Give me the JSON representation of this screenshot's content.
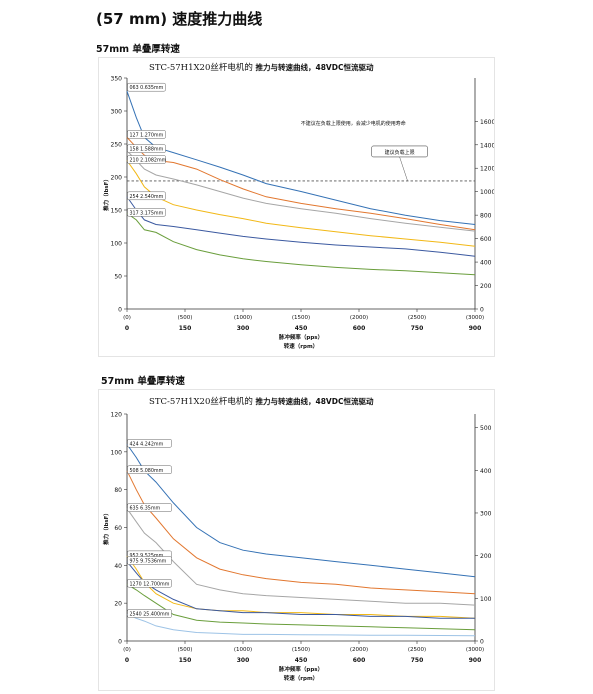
{
  "page": {
    "title": "(57 mm) 速度推力曲线",
    "section1_title": "57mm 单叠厚转速",
    "section2_title": "57mm 单叠厚转速"
  },
  "chart_data": [
    {
      "type": "line",
      "title_prefix": "STC-57H1X20丝杆电机的",
      "title_suffix": "推力与转速曲线，48VDC恒流驱动",
      "ylabel": "推力（lbsF）",
      "ylabel_right": "推力（N）",
      "xlabel": "脉冲频率（pps）",
      "xlabel2": "转速（rpm）",
      "yticks": [
        "0",
        "50",
        "100",
        "150",
        "200",
        "250",
        "300",
        "350"
      ],
      "ylim": [
        0,
        350
      ],
      "yticks_right": [
        "0",
        "200",
        "400",
        "600",
        "800",
        "1000",
        "1200",
        "1400",
        "1600"
      ],
      "x_pps_ticks": [
        "(0)",
        "(500)",
        "(1000)",
        "(1500)",
        "(2000)",
        "(2500)",
        "(3000)"
      ],
      "x_rpm_ticks": [
        "0",
        "150",
        "300",
        "450",
        "600",
        "750",
        "900"
      ],
      "xlim": [
        0,
        3000
      ],
      "note": "不建议在负载上限使用，会减少电机的使用寿命",
      "limit_label": "建议负载上限",
      "limit_value": 194,
      "series": [
        {
          "name": "063 0.635mm",
          "color": "#3572b5",
          "x": [
            0,
            80,
            150,
            250,
            400,
            600,
            800,
            1000,
            1200,
            1500,
            1800,
            2100,
            2400,
            2700,
            3000
          ],
          "y": [
            330,
            290,
            260,
            245,
            237,
            226,
            215,
            203,
            190,
            178,
            165,
            152,
            142,
            134,
            128
          ]
        },
        {
          "name": "127 1.270mm",
          "color": "#e2772f",
          "x": [
            0,
            80,
            150,
            250,
            400,
            600,
            800,
            1000,
            1200,
            1500,
            1800,
            2100,
            2400,
            2700,
            3000
          ],
          "y": [
            260,
            245,
            233,
            225,
            222,
            212,
            196,
            182,
            170,
            160,
            152,
            145,
            137,
            128,
            120
          ]
        },
        {
          "name": "158 1.588mm",
          "color": "#a6a6a6",
          "x": [
            0,
            80,
            150,
            250,
            400,
            600,
            800,
            1000,
            1200,
            1500,
            1800,
            2100,
            2400,
            2700,
            3000
          ],
          "y": [
            240,
            225,
            212,
            203,
            197,
            188,
            178,
            168,
            160,
            152,
            145,
            137,
            130,
            124,
            118
          ]
        },
        {
          "name": "210 2.1082mm",
          "color": "#f2b816",
          "x": [
            0,
            80,
            150,
            250,
            400,
            600,
            800,
            1000,
            1200,
            1500,
            1800,
            2100,
            2400,
            2700,
            3000
          ],
          "y": [
            225,
            205,
            185,
            170,
            158,
            150,
            143,
            137,
            130,
            123,
            117,
            111,
            106,
            101,
            95
          ]
        },
        {
          "name": "254 2.540mm",
          "color": "#3b59a0",
          "x": [
            0,
            80,
            150,
            250,
            400,
            600,
            800,
            1000,
            1200,
            1500,
            1800,
            2100,
            2400,
            2700,
            3000
          ],
          "y": [
            170,
            150,
            135,
            128,
            125,
            120,
            115,
            110,
            106,
            101,
            97,
            94,
            91,
            86,
            80
          ]
        },
        {
          "name": "317 3.175mm",
          "color": "#6a9e3c",
          "x": [
            0,
            80,
            150,
            250,
            400,
            600,
            800,
            1000,
            1200,
            1500,
            1800,
            2100,
            2400,
            2700,
            3000
          ],
          "y": [
            145,
            135,
            120,
            116,
            102,
            90,
            82,
            76,
            72,
            67,
            63,
            60,
            58,
            55,
            52
          ]
        }
      ],
      "grid": false,
      "legend": "callout labels at curve starts"
    },
    {
      "type": "line",
      "title_prefix": "STC-57H1X20丝杆电机的",
      "title_suffix": "推力与转速曲线，48VDC恒流驱动",
      "ylabel": "推力（lbsF）",
      "ylabel_right": "推力（N）",
      "xlabel": "脉冲频率（pps）",
      "xlabel2": "转速（rpm）",
      "yticks": [
        "0",
        "20",
        "40",
        "60",
        "80",
        "100",
        "120"
      ],
      "ylim": [
        0,
        120
      ],
      "yticks_right": [
        "0",
        "100",
        "200",
        "300",
        "400",
        "500"
      ],
      "x_pps_ticks": [
        "(0)",
        "(500)",
        "(1000)",
        "(1500)",
        "(2000)",
        "(2500)",
        "(3000)"
      ],
      "x_rpm_ticks": [
        "0",
        "150",
        "300",
        "450",
        "600",
        "750",
        "900"
      ],
      "xlim": [
        0,
        3000
      ],
      "series": [
        {
          "name": "424 4.242mm",
          "color": "#3572b5",
          "x": [
            0,
            80,
            150,
            250,
            400,
            600,
            800,
            1000,
            1200,
            1500,
            1800,
            2100,
            2400,
            2700,
            3000
          ],
          "y": [
            104,
            97,
            90,
            84,
            73,
            60,
            52,
            48,
            46,
            44,
            42,
            40,
            38,
            36,
            34
          ]
        },
        {
          "name": "508 5.080mm",
          "color": "#e2772f",
          "x": [
            0,
            80,
            150,
            250,
            400,
            600,
            800,
            1000,
            1200,
            1500,
            1800,
            2100,
            2400,
            2700,
            3000
          ],
          "y": [
            90,
            80,
            72,
            65,
            54,
            44,
            38,
            35,
            33,
            31,
            30,
            28,
            27,
            26,
            25
          ]
        },
        {
          "name": "635 6.35mm",
          "color": "#a6a6a6",
          "x": [
            0,
            80,
            150,
            250,
            400,
            600,
            800,
            1000,
            1200,
            1500,
            1800,
            2100,
            2400,
            2700,
            3000
          ],
          "y": [
            70,
            63,
            57,
            52,
            42,
            30,
            27,
            25,
            24,
            23,
            22,
            21,
            20,
            20,
            19
          ]
        },
        {
          "name": "952 9.525mm",
          "color": "#f2b816",
          "x": [
            0,
            80,
            150,
            250,
            400,
            600,
            800,
            1000,
            1200,
            1500,
            1800,
            2100,
            2400,
            2700,
            3000
          ],
          "y": [
            45,
            38,
            31,
            25,
            20,
            17,
            16,
            16,
            15,
            15,
            14,
            14,
            13,
            13,
            12
          ]
        },
        {
          "name": "975 9.7536mm",
          "color": "#3b59a0",
          "x": [
            0,
            80,
            150,
            250,
            400,
            600,
            800,
            1000,
            1200,
            1500,
            1800,
            2100,
            2400,
            2700,
            3000
          ],
          "y": [
            42,
            36,
            31,
            27,
            22,
            17,
            16,
            15,
            15,
            14,
            14,
            13,
            13,
            12,
            12
          ]
        },
        {
          "name": "1270 12.700mm",
          "color": "#6a9e3c",
          "x": [
            0,
            80,
            150,
            250,
            400,
            600,
            800,
            1000,
            1200,
            1500,
            1800,
            2100,
            2400,
            2700,
            3000
          ],
          "y": [
            30,
            27,
            24,
            20,
            14,
            11,
            10,
            9.5,
            9,
            8.5,
            8,
            7.5,
            7,
            6.5,
            6
          ]
        },
        {
          "name": "2540 25.400mm",
          "color": "#9dc3e6",
          "x": [
            0,
            80,
            150,
            250,
            400,
            600,
            800,
            1000,
            1200,
            1500,
            1800,
            2100,
            2400,
            2700,
            3000
          ],
          "y": [
            14,
            12,
            10.5,
            8,
            6,
            4.5,
            4,
            3.5,
            3.5,
            3.3,
            3.2,
            3,
            3,
            2.9,
            2.8
          ]
        }
      ],
      "grid": false,
      "legend": "callout labels at curve starts"
    }
  ]
}
